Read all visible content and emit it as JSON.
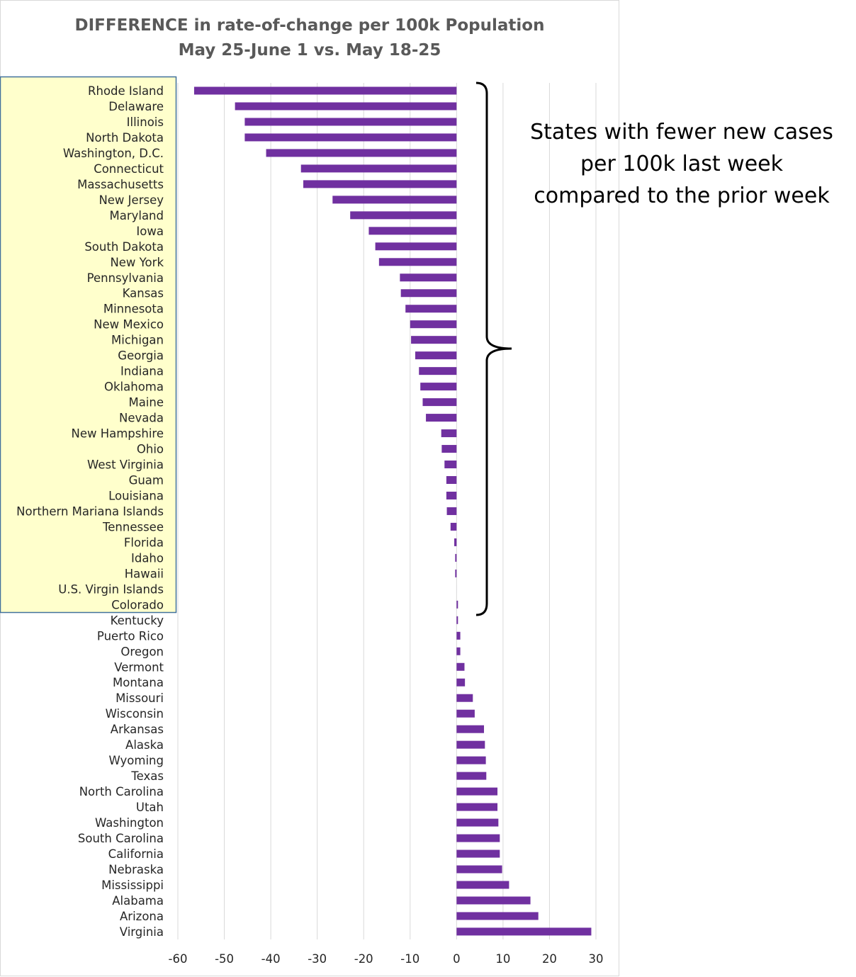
{
  "chart_data": {
    "type": "bar",
    "orientation": "horizontal",
    "title_line1": "DIFFERENCE in rate-of-change per 100k Population",
    "title_line2": "May 25-June 1  vs. May 18-25",
    "xlim": [
      -60,
      30
    ],
    "xticks": [
      -60,
      -50,
      -40,
      -30,
      -20,
      -10,
      0,
      10,
      20,
      30
    ],
    "grid": true,
    "bar_color": "#7030A0",
    "highlight_color": "#FFFFCC",
    "highlight_border_color": "#41719C",
    "annotation_lines": [
      "States with fewer new cases",
      "per 100k last week",
      "compared to the prior week"
    ],
    "categories": [
      "Rhode Island",
      "Delaware",
      "Illinois",
      "North Dakota",
      "Washington, D.C.",
      "Connecticut",
      "Massachusetts",
      "New Jersey",
      "Maryland",
      "Iowa",
      "South Dakota",
      "New York",
      "Pennsylvania",
      "Kansas",
      "Minnesota",
      "New Mexico",
      "Michigan",
      "Georgia",
      "Indiana",
      "Oklahoma",
      "Maine",
      "Nevada",
      "New Hampshire",
      "Ohio",
      "West Virginia",
      "Guam",
      "Louisiana",
      "Northern Mariana Islands",
      "Tennessee",
      "Florida",
      "Idaho",
      "Hawaii",
      "U.S. Virgin Islands",
      "Colorado",
      "Kentucky",
      "Puerto Rico",
      "Oregon",
      "Vermont",
      "Montana",
      "Missouri",
      "Wisconsin",
      "Arkansas",
      "Alaska",
      "Wyoming",
      "Texas",
      "North Carolina",
      "Utah",
      "Washington",
      "South Carolina",
      "California",
      "Nebraska",
      "Mississippi",
      "Alabama",
      "Arizona",
      "Virginia"
    ],
    "values": [
      -56.5,
      -47.7,
      -45.6,
      -45.6,
      -41.0,
      -33.5,
      -33.0,
      -26.7,
      -22.9,
      -18.9,
      -17.5,
      -16.7,
      -12.2,
      -12.0,
      -11.0,
      -10.0,
      -9.8,
      -8.9,
      -8.1,
      -7.8,
      -7.3,
      -6.6,
      -3.3,
      -3.2,
      -2.6,
      -2.2,
      -2.2,
      -2.1,
      -1.3,
      -0.5,
      -0.3,
      -0.3,
      0.0,
      0.3,
      0.3,
      0.8,
      0.8,
      1.7,
      1.8,
      3.5,
      3.9,
      5.9,
      6.1,
      6.3,
      6.4,
      8.8,
      8.8,
      9.0,
      9.3,
      9.3,
      9.8,
      11.3,
      15.9,
      17.6,
      29.0
    ],
    "highlighted_count": 34
  }
}
